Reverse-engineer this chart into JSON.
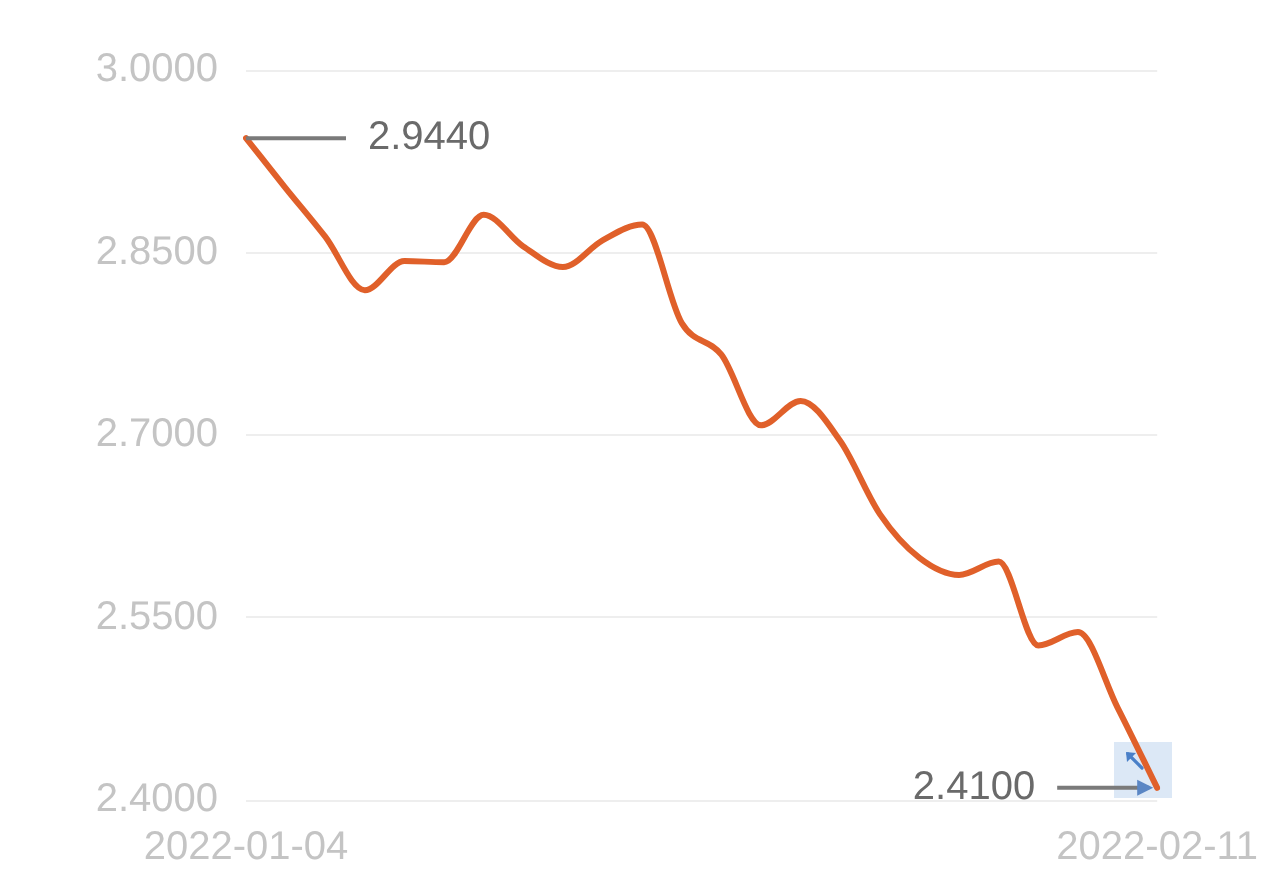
{
  "chart_data": {
    "type": "line",
    "categories": [
      "2022-01-04",
      null,
      null,
      null,
      null,
      null,
      null,
      null,
      null,
      null,
      null,
      null,
      null,
      null,
      null,
      null,
      null,
      null,
      null,
      null,
      null,
      null,
      null,
      "2022-02-11"
    ],
    "values": [
      2.944,
      2.903,
      2.863,
      2.819,
      2.843,
      2.842,
      2.881,
      2.855,
      2.838,
      2.86,
      2.873,
      2.792,
      2.766,
      2.708,
      2.728,
      2.695,
      2.635,
      2.599,
      2.585,
      2.596,
      2.527,
      2.538,
      2.476,
      2.41
    ],
    "color": "#e0602a",
    "ylim": [
      2.4,
      3.0
    ],
    "yticks": [
      {
        "value": 2.4,
        "label": "2.4000"
      },
      {
        "value": 2.55,
        "label": "2.5500"
      },
      {
        "value": 2.7,
        "label": "2.7000"
      },
      {
        "value": 2.85,
        "label": "2.8500"
      },
      {
        "value": 3.0,
        "label": "3.0000"
      }
    ],
    "grid": "y",
    "marker": "none",
    "line_style": "solid",
    "annotations": [
      {
        "text": "2.9440",
        "x": "2022-01-04",
        "y": 2.944
      },
      {
        "text": "2.4100",
        "x": "2022-02-11",
        "y": 2.41
      }
    ]
  }
}
